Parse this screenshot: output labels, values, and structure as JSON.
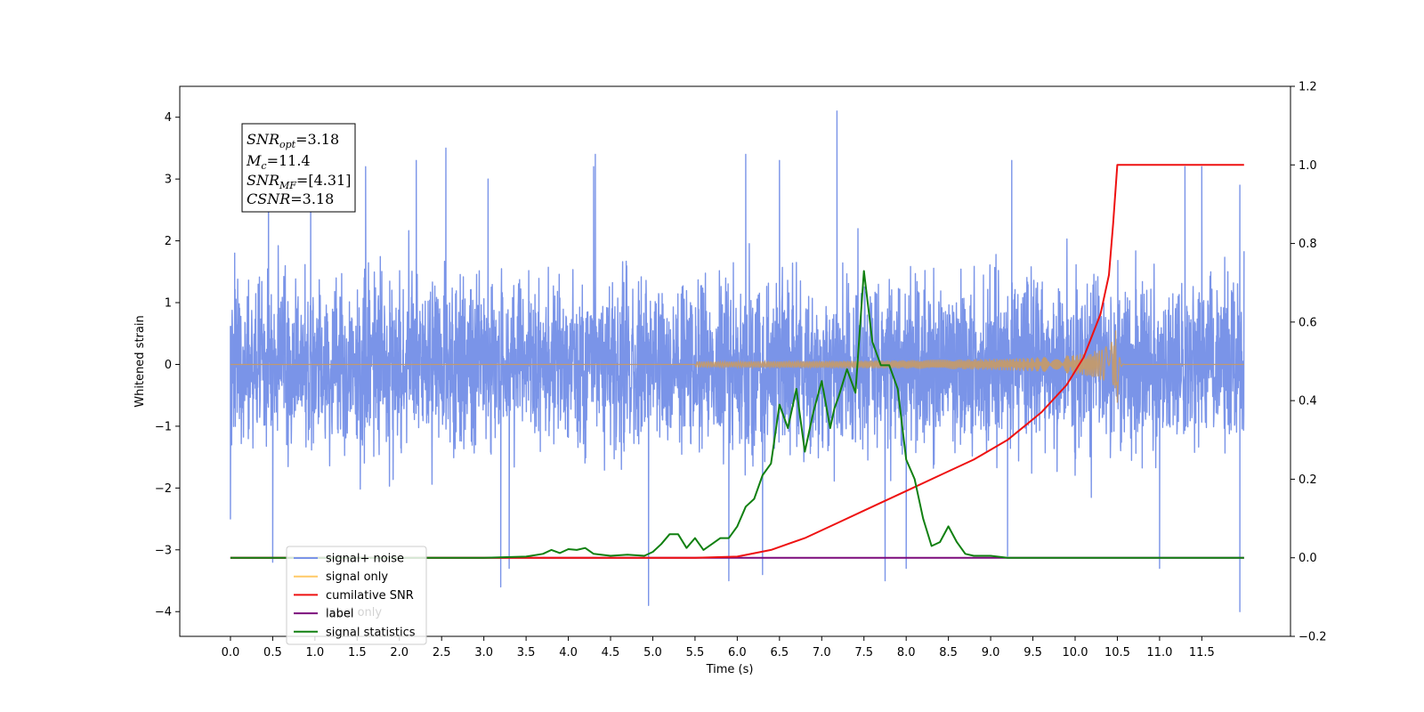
{
  "chart_data": {
    "type": "line",
    "xlabel": "Time (s)",
    "ylabel": "Whitened strain",
    "xlim": [
      -0.6,
      12.55
    ],
    "ylim": [
      -4.4,
      4.5
    ],
    "y2lim": [
      -0.2,
      1.2
    ],
    "x_ticks": [
      "0.0",
      "0.5",
      "1.0",
      "1.5",
      "2.0",
      "2.5",
      "3.0",
      "3.5",
      "4.0",
      "4.5",
      "5.0",
      "5.5",
      "6.0",
      "6.5",
      "7.0",
      "7.5",
      "8.0",
      "8.5",
      "9.0",
      "9.5",
      "10.0",
      "10.5",
      "11.0",
      "11.5"
    ],
    "y_ticks": [
      "−4",
      "−3",
      "−2",
      "−1",
      "0",
      "1",
      "2",
      "3",
      "4"
    ],
    "y2_ticks": [
      "−0.2",
      "0.0",
      "0.2",
      "0.4",
      "0.6",
      "0.8",
      "1.0",
      "1.2"
    ],
    "stats_box": {
      "snr_opt": "SNR",
      "snr_opt_sub": "opt",
      "snr_opt_value": "=3.18",
      "mc": "M",
      "mc_sub": "c",
      "mc_value": "=11.4",
      "snr_mf": "SNR",
      "snr_mf_sub": "MF",
      "snr_mf_value": "=[4.31]",
      "csnr": "CSNR",
      "csnr_value": "=3.18"
    },
    "legend": {
      "placement": "lower-left",
      "entries": [
        "signal+ noise",
        "signal only",
        "cumilative SNR",
        "label",
        "signal statistics"
      ],
      "overlapped_text": "label only"
    },
    "series": [
      {
        "name": "signal+ noise",
        "color": "#7a94e8",
        "axis": "left",
        "envelope": {
          "x": [
            0.0,
            12.0
          ],
          "upper_max": 2.4,
          "lower_min": -2.4,
          "peaks": [
            [
              0.05,
              1.8
            ],
            [
              0.45,
              3.2
            ],
            [
              0.95,
              3.1
            ],
            [
              1.6,
              3.2
            ],
            [
              2.2,
              3.3
            ],
            [
              2.55,
              3.5
            ],
            [
              3.05,
              3.0
            ],
            [
              4.3,
              3.2
            ],
            [
              4.32,
              3.4
            ],
            [
              6.1,
              3.4
            ],
            [
              6.5,
              3.3
            ],
            [
              7.18,
              4.1
            ],
            [
              9.25,
              3.3
            ],
            [
              11.3,
              3.2
            ],
            [
              11.5,
              3.2
            ],
            [
              11.95,
              2.9
            ]
          ],
          "troughs": [
            [
              0.0,
              -2.5
            ],
            [
              0.5,
              -3.2
            ],
            [
              3.2,
              -3.6
            ],
            [
              3.3,
              -3.3
            ],
            [
              4.95,
              -3.9
            ],
            [
              5.9,
              -3.5
            ],
            [
              6.3,
              -3.4
            ],
            [
              7.75,
              -3.5
            ],
            [
              8.0,
              -3.3
            ],
            [
              9.2,
              -3.1
            ],
            [
              11.0,
              -3.3
            ],
            [
              11.95,
              -4.0
            ]
          ]
        }
      },
      {
        "name": "signal only",
        "color": "#c49a6c",
        "axis": "left",
        "chirp": {
          "start": 5.5,
          "merger": 10.5,
          "end": 12.0,
          "peak_amp": 0.6
        }
      },
      {
        "name": "cumilative SNR",
        "color": "#ee1111",
        "axis": "right",
        "x": [
          0.0,
          5.5,
          6.0,
          6.4,
          6.8,
          7.2,
          7.6,
          8.0,
          8.4,
          8.8,
          9.2,
          9.6,
          9.9,
          10.1,
          10.3,
          10.4,
          10.45,
          10.5,
          12.0
        ],
        "values": [
          0.0,
          0.0,
          0.003,
          0.02,
          0.05,
          0.09,
          0.13,
          0.17,
          0.21,
          0.25,
          0.3,
          0.37,
          0.44,
          0.51,
          0.62,
          0.72,
          0.85,
          1.0,
          1.0
        ]
      },
      {
        "name": "label",
        "color": "#7b0a7b",
        "axis": "right",
        "x": [
          0.0,
          12.0
        ],
        "values": [
          0.0,
          0.0
        ]
      },
      {
        "name": "signal statistics",
        "color": "#118011",
        "axis": "right",
        "x": [
          0.0,
          3.0,
          3.5,
          3.7,
          3.8,
          3.9,
          4.0,
          4.1,
          4.2,
          4.3,
          4.5,
          4.7,
          4.9,
          5.0,
          5.1,
          5.2,
          5.3,
          5.4,
          5.5,
          5.6,
          5.7,
          5.8,
          5.9,
          6.0,
          6.1,
          6.2,
          6.3,
          6.4,
          6.5,
          6.6,
          6.7,
          6.8,
          6.9,
          7.0,
          7.1,
          7.15,
          7.2,
          7.3,
          7.4,
          7.5,
          7.6,
          7.7,
          7.8,
          7.9,
          8.0,
          8.1,
          8.2,
          8.3,
          8.4,
          8.5,
          8.6,
          8.7,
          8.8,
          9.0,
          9.2,
          12.0
        ],
        "values": [
          0.0,
          0.0,
          0.003,
          0.01,
          0.02,
          0.012,
          0.022,
          0.02,
          0.025,
          0.01,
          0.005,
          0.008,
          0.005,
          0.015,
          0.035,
          0.06,
          0.06,
          0.025,
          0.05,
          0.02,
          0.035,
          0.05,
          0.05,
          0.08,
          0.13,
          0.15,
          0.21,
          0.24,
          0.39,
          0.33,
          0.43,
          0.27,
          0.37,
          0.45,
          0.33,
          0.38,
          0.41,
          0.48,
          0.42,
          0.73,
          0.55,
          0.49,
          0.49,
          0.43,
          0.25,
          0.2,
          0.1,
          0.03,
          0.04,
          0.08,
          0.04,
          0.01,
          0.005,
          0.005,
          0.0,
          0.0
        ]
      }
    ]
  }
}
